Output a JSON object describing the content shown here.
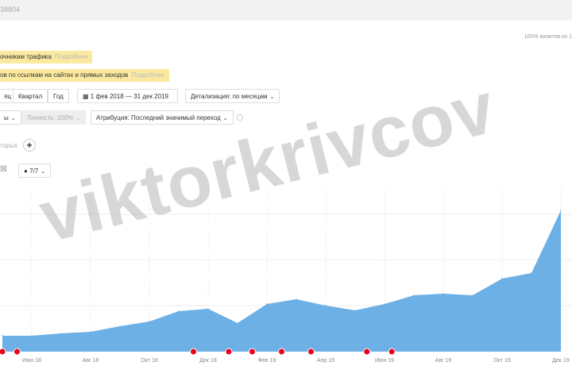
{
  "header": {
    "counter_id": "38804",
    "visits_note": "100% визитов из 1"
  },
  "hints": [
    {
      "text": "очникам трафика",
      "more": "Подробнее"
    },
    {
      "text": "ов по ссылкам на сайтах и прямых заходов",
      "more": "Подробнее"
    }
  ],
  "period_buttons": [
    "яц",
    "Квартал",
    "Год"
  ],
  "date_range": "1 фев 2018 — 31 дек 2019",
  "detail": "Детализация: по месяцам",
  "filter_left": "ы",
  "accuracy": "Точность: 100%",
  "attribution": "Атрибуция: Последний значимый переход",
  "compare_label": "торых",
  "annotations_count": "7/7",
  "watermark": "viktorkrivcov",
  "colors": {
    "area": "#6cb0e6",
    "marker": "#e8001c",
    "hint_bg": "#fbe9a0"
  },
  "chart_data": {
    "type": "area",
    "x": [
      "май 18",
      "июн 18",
      "июл 18",
      "авг 18",
      "сен 18",
      "окт 18",
      "ноя 18",
      "дек 18",
      "янв 19",
      "фев 19",
      "мар 19",
      "апр 19",
      "май 19",
      "июн 19",
      "июл 19",
      "авг 19",
      "сен 19",
      "окт 19",
      "ноя 19",
      "дек 19"
    ],
    "values": [
      20,
      20,
      23,
      25,
      32,
      38,
      51,
      54,
      36,
      60,
      66,
      58,
      52,
      60,
      71,
      73,
      71,
      92,
      99,
      178
    ],
    "tick_labels": [
      "Июн 18",
      "Авг 18",
      "Окт 18",
      "Дек 18",
      "Фев 19",
      "Апр 19",
      "Июн 19",
      "Авг 19",
      "Окт 19",
      "Дек 19"
    ],
    "ylim": [
      0,
      205
    ],
    "grid": true,
    "marker_months": [
      0,
      1,
      13,
      15.4,
      17,
      19,
      21,
      24.8,
      26.5,
      39
    ]
  }
}
